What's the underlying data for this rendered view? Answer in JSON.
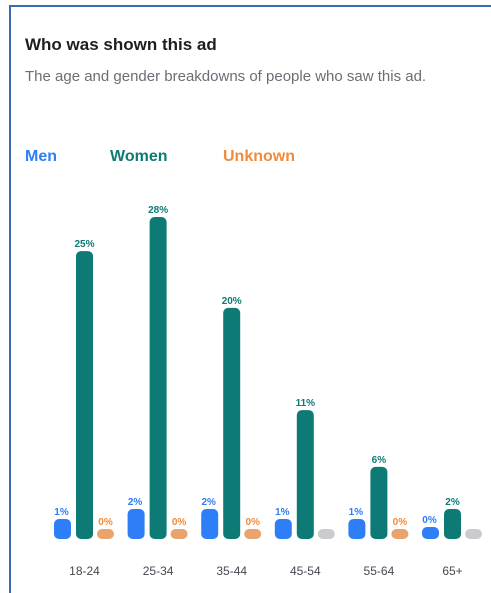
{
  "card": {
    "title": "Who was shown this ad",
    "subtitle": "The age and gender breakdowns of people who saw this ad."
  },
  "legend": {
    "men": "Men",
    "women": "Women",
    "unknown": "Unknown"
  },
  "colors": {
    "men": "#2d7ef7",
    "women": "#0e7a75",
    "unknown": "#f08b3c",
    "unknown_neutral": "#c9cbcf",
    "frame": "#3b69b6"
  },
  "chart_data": {
    "type": "bar",
    "categories": [
      "18-24",
      "25-34",
      "35-44",
      "45-54",
      "55-64",
      "65+"
    ],
    "series": [
      {
        "name": "Men",
        "values": [
          1,
          2,
          2,
          1,
          1,
          0
        ],
        "labels": [
          "1%",
          "2%",
          "2%",
          "1%",
          "1%",
          "0%"
        ]
      },
      {
        "name": "Women",
        "values": [
          25,
          28,
          20,
          11,
          6,
          2
        ],
        "labels": [
          "25%",
          "28%",
          "20%",
          "11%",
          "6%",
          "2%"
        ]
      },
      {
        "name": "Unknown",
        "values": [
          0,
          0,
          0,
          0,
          0,
          0
        ],
        "labels": [
          "0%",
          "0%",
          "0%",
          "",
          "0%",
          ""
        ]
      }
    ],
    "ylim": [
      0,
      28
    ],
    "grid": false,
    "legend_position": "top-left"
  }
}
